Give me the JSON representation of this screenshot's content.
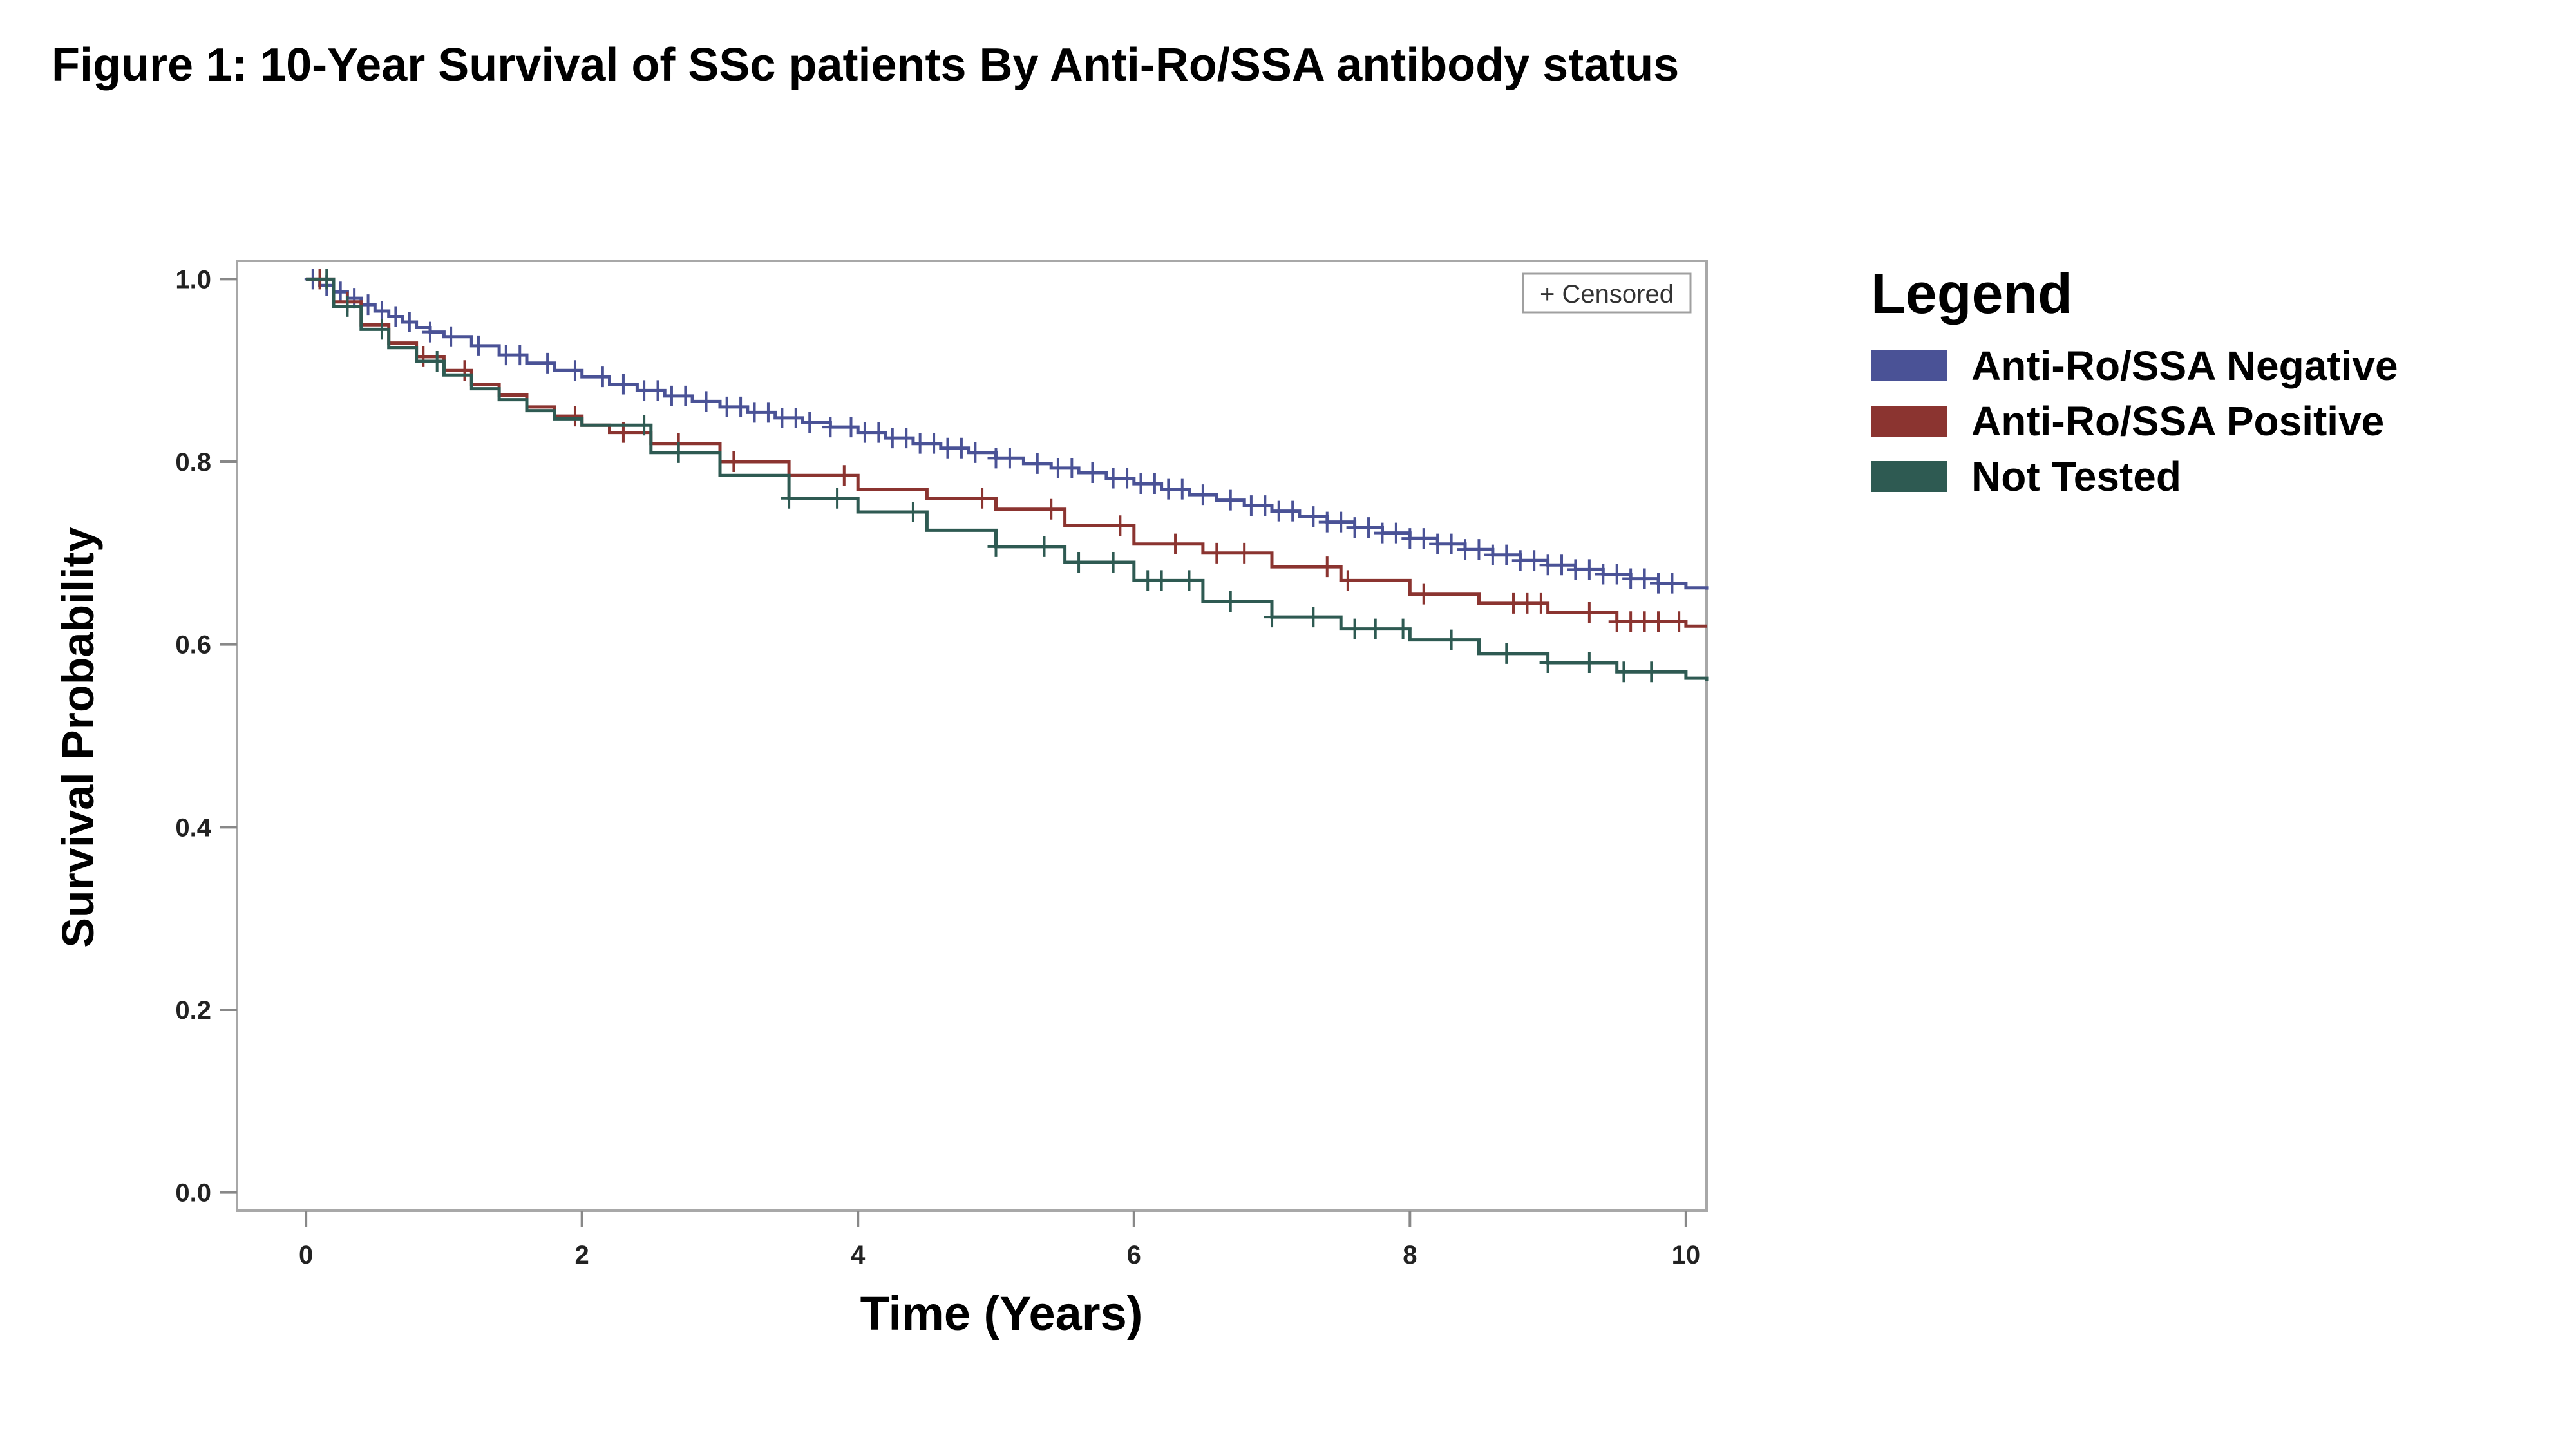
{
  "figure_title": "Figure 1: 10-Year Survival of SSc patients By Anti-Ro/SSA antibody status",
  "chart_data": {
    "type": "line",
    "subtype": "kaplan-meier step",
    "xlabel": "Time (Years)",
    "ylabel": "Survival Probability",
    "xlim": [
      -0.5,
      10.15
    ],
    "ylim": [
      -0.02,
      1.02
    ],
    "x_ticks": [
      0,
      2,
      4,
      6,
      8,
      10
    ],
    "y_ticks": [
      "0.0",
      "0.2",
      "0.4",
      "0.6",
      "0.8",
      "1.0"
    ],
    "inset_legend": "+ Censored",
    "inset_legend_position": "top-right",
    "grid": false,
    "legend_title": "Legend",
    "series": [
      {
        "name": "Anti-Ro/SSA Negative",
        "color": "#4a5296",
        "x": [
          0,
          0.1,
          0.2,
          0.3,
          0.4,
          0.5,
          0.6,
          0.7,
          0.8,
          0.9,
          1.0,
          1.2,
          1.4,
          1.6,
          1.8,
          2.0,
          2.2,
          2.4,
          2.6,
          2.8,
          3.0,
          3.2,
          3.4,
          3.6,
          3.8,
          4.0,
          4.2,
          4.4,
          4.6,
          4.8,
          5.0,
          5.2,
          5.4,
          5.6,
          5.8,
          6.0,
          6.2,
          6.4,
          6.6,
          6.8,
          7.0,
          7.2,
          7.4,
          7.6,
          7.8,
          8.0,
          8.2,
          8.4,
          8.6,
          8.8,
          9.0,
          9.2,
          9.4,
          9.6,
          9.8,
          10.0,
          10.15
        ],
        "y": [
          1.0,
          0.993,
          0.986,
          0.979,
          0.972,
          0.965,
          0.959,
          0.953,
          0.947,
          0.942,
          0.937,
          0.927,
          0.917,
          0.908,
          0.9,
          0.893,
          0.885,
          0.878,
          0.872,
          0.866,
          0.86,
          0.854,
          0.848,
          0.843,
          0.838,
          0.832,
          0.826,
          0.82,
          0.815,
          0.81,
          0.804,
          0.798,
          0.793,
          0.788,
          0.782,
          0.776,
          0.77,
          0.764,
          0.758,
          0.752,
          0.746,
          0.74,
          0.734,
          0.728,
          0.722,
          0.716,
          0.71,
          0.704,
          0.698,
          0.692,
          0.687,
          0.682,
          0.677,
          0.672,
          0.667,
          0.662,
          0.66
        ],
        "censored": [
          0.05,
          0.15,
          0.25,
          0.35,
          0.45,
          0.55,
          0.65,
          0.75,
          0.9,
          1.05,
          1.25,
          1.45,
          1.55,
          1.75,
          1.95,
          2.15,
          2.3,
          2.45,
          2.55,
          2.65,
          2.75,
          2.9,
          3.05,
          3.15,
          3.25,
          3.35,
          3.45,
          3.55,
          3.65,
          3.8,
          3.95,
          4.05,
          4.15,
          4.25,
          4.35,
          4.45,
          4.55,
          4.65,
          4.75,
          4.85,
          5.0,
          5.1,
          5.3,
          5.45,
          5.55,
          5.7,
          5.85,
          5.95,
          6.05,
          6.15,
          6.25,
          6.35,
          6.5,
          6.7,
          6.85,
          6.95,
          7.05,
          7.15,
          7.3,
          7.4,
          7.5,
          7.6,
          7.7,
          7.8,
          7.9,
          8.0,
          8.1,
          8.2,
          8.3,
          8.4,
          8.5,
          8.6,
          8.7,
          8.8,
          8.9,
          9.0,
          9.1,
          9.2,
          9.3,
          9.4,
          9.5,
          9.6,
          9.7,
          9.8,
          9.9
        ]
      },
      {
        "name": "Anti-Ro/SSA Positive",
        "color": "#8b3430",
        "x": [
          0,
          0.2,
          0.4,
          0.6,
          0.8,
          1.0,
          1.2,
          1.4,
          1.6,
          1.8,
          2.0,
          2.2,
          2.5,
          3.0,
          3.5,
          4.0,
          4.5,
          5.0,
          5.5,
          6.0,
          6.5,
          7.0,
          7.5,
          8.0,
          8.5,
          9.0,
          9.5,
          10.0,
          10.15
        ],
        "y": [
          1.0,
          0.975,
          0.95,
          0.93,
          0.915,
          0.9,
          0.885,
          0.873,
          0.86,
          0.85,
          0.84,
          0.832,
          0.82,
          0.8,
          0.785,
          0.77,
          0.76,
          0.748,
          0.73,
          0.71,
          0.7,
          0.685,
          0.67,
          0.655,
          0.645,
          0.635,
          0.625,
          0.62,
          0.62
        ],
        "censored": [
          0.1,
          0.3,
          0.85,
          1.15,
          1.95,
          2.3,
          2.7,
          3.1,
          3.9,
          4.9,
          5.4,
          5.9,
          6.3,
          6.6,
          6.8,
          7.4,
          7.55,
          8.1,
          8.75,
          8.85,
          8.95,
          9.3,
          9.5,
          9.6,
          9.7,
          9.8,
          9.95
        ]
      },
      {
        "name": "Not Tested",
        "color": "#2e5a52",
        "x": [
          0,
          0.2,
          0.4,
          0.6,
          0.8,
          1.0,
          1.2,
          1.4,
          1.6,
          1.8,
          2.0,
          2.5,
          3.0,
          3.5,
          4.0,
          4.5,
          5.0,
          5.5,
          6.0,
          6.5,
          7.0,
          7.5,
          8.0,
          8.5,
          9.0,
          9.5,
          10.0,
          10.15
        ],
        "y": [
          1.0,
          0.97,
          0.945,
          0.925,
          0.91,
          0.895,
          0.88,
          0.868,
          0.856,
          0.847,
          0.84,
          0.81,
          0.785,
          0.76,
          0.745,
          0.725,
          0.707,
          0.69,
          0.67,
          0.647,
          0.63,
          0.617,
          0.605,
          0.59,
          0.58,
          0.57,
          0.563,
          0.56
        ],
        "censored": [
          0.15,
          0.3,
          0.55,
          0.95,
          2.45,
          2.7,
          3.5,
          3.85,
          4.4,
          5.0,
          5.35,
          5.6,
          5.85,
          6.1,
          6.2,
          6.4,
          6.7,
          7.0,
          7.3,
          7.6,
          7.75,
          7.95,
          8.3,
          8.7,
          9.0,
          9.3,
          9.55,
          9.75
        ]
      }
    ]
  }
}
